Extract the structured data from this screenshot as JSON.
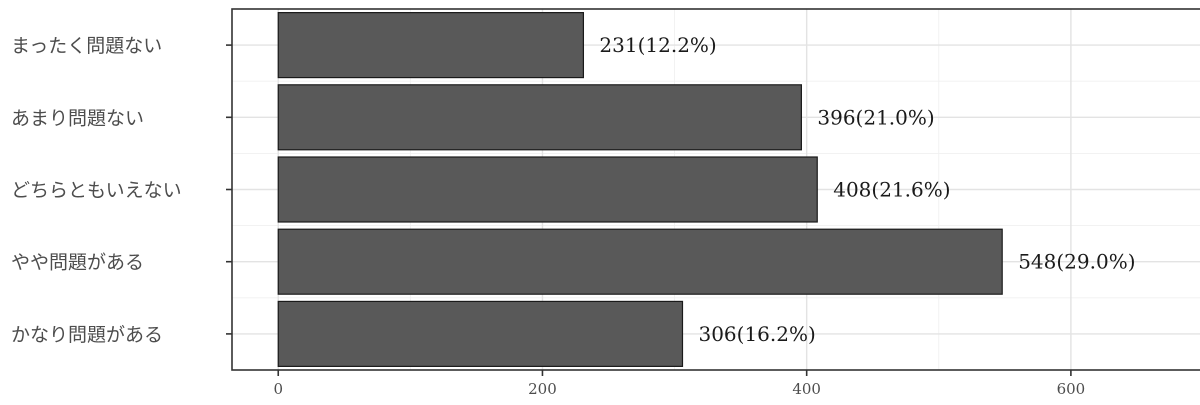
{
  "chart_data": {
    "type": "bar",
    "orientation": "horizontal",
    "categories": [
      "まったく問題ない",
      "あまり問題ない",
      "どちらともいえない",
      "やや問題がある",
      "かなり問題がある"
    ],
    "values": [
      231,
      396,
      408,
      548,
      306
    ],
    "data_labels": [
      "231(12.2%)",
      "396(21.0%)",
      "408(21.6%)",
      "548(29.0%)",
      "306(16.2%)"
    ],
    "x_ticks": [
      "0",
      "200",
      "400",
      "600"
    ],
    "xlim": [
      -35,
      700
    ],
    "title": "",
    "xlabel": "",
    "ylabel": "",
    "grid": true,
    "legend": "none",
    "colors": {
      "bar_fill": "#595959",
      "bar_stroke": "#1a1a1a"
    }
  }
}
